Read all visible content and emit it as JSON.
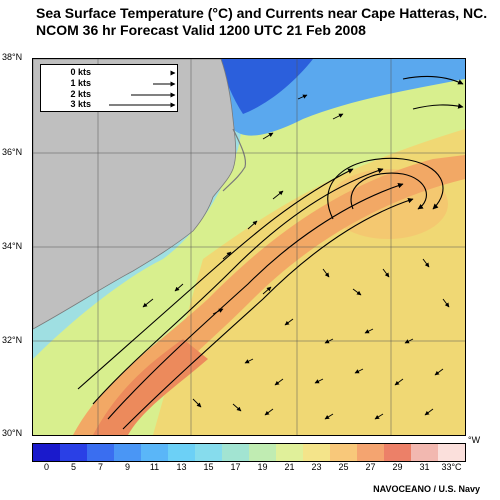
{
  "title": {
    "line1": "Sea Surface Temperature (°C) and Currents near Cape Hatteras, NC.",
    "line2": "NCOM 36 hr Forecast Valid 1200 UTC 21 Feb 2008"
  },
  "lat_labels": [
    "38°N",
    "36°N",
    "34°N",
    "32°N",
    "30°N"
  ],
  "legend": {
    "rows": [
      {
        "label": "0 kts",
        "speed": 0
      },
      {
        "label": "1 kts",
        "speed": 1
      },
      {
        "label": "2 kts",
        "speed": 2
      },
      {
        "label": "3 kts",
        "speed": 3
      }
    ]
  },
  "colorbar": {
    "ticks": [
      "0",
      "5",
      "7",
      "9",
      "11",
      "13",
      "15",
      "17",
      "19",
      "21",
      "23",
      "25",
      "27",
      "29",
      "31",
      "33°C"
    ],
    "colors": [
      "#1a1acc",
      "#2a40e6",
      "#3a6ef0",
      "#4a96f5",
      "#5ab6f8",
      "#6cd0f6",
      "#86dced",
      "#a2e4d2",
      "#c0ecb2",
      "#e0f09a",
      "#f4e48a",
      "#f8c87a",
      "#f4a470",
      "#ec8068",
      "#f2b8b0",
      "#fbe0dc"
    ],
    "unit_label": "°W"
  },
  "credit": "NAVOCEANO / U.S. Navy",
  "map": {
    "land_color": "#bfbfbf",
    "gulf_stream_color": "#f1a263",
    "shelf_water_color": "#86d4f0",
    "cold_water_color": "#2f6fe3",
    "warm_eddy_color": "#f2d46b"
  }
}
